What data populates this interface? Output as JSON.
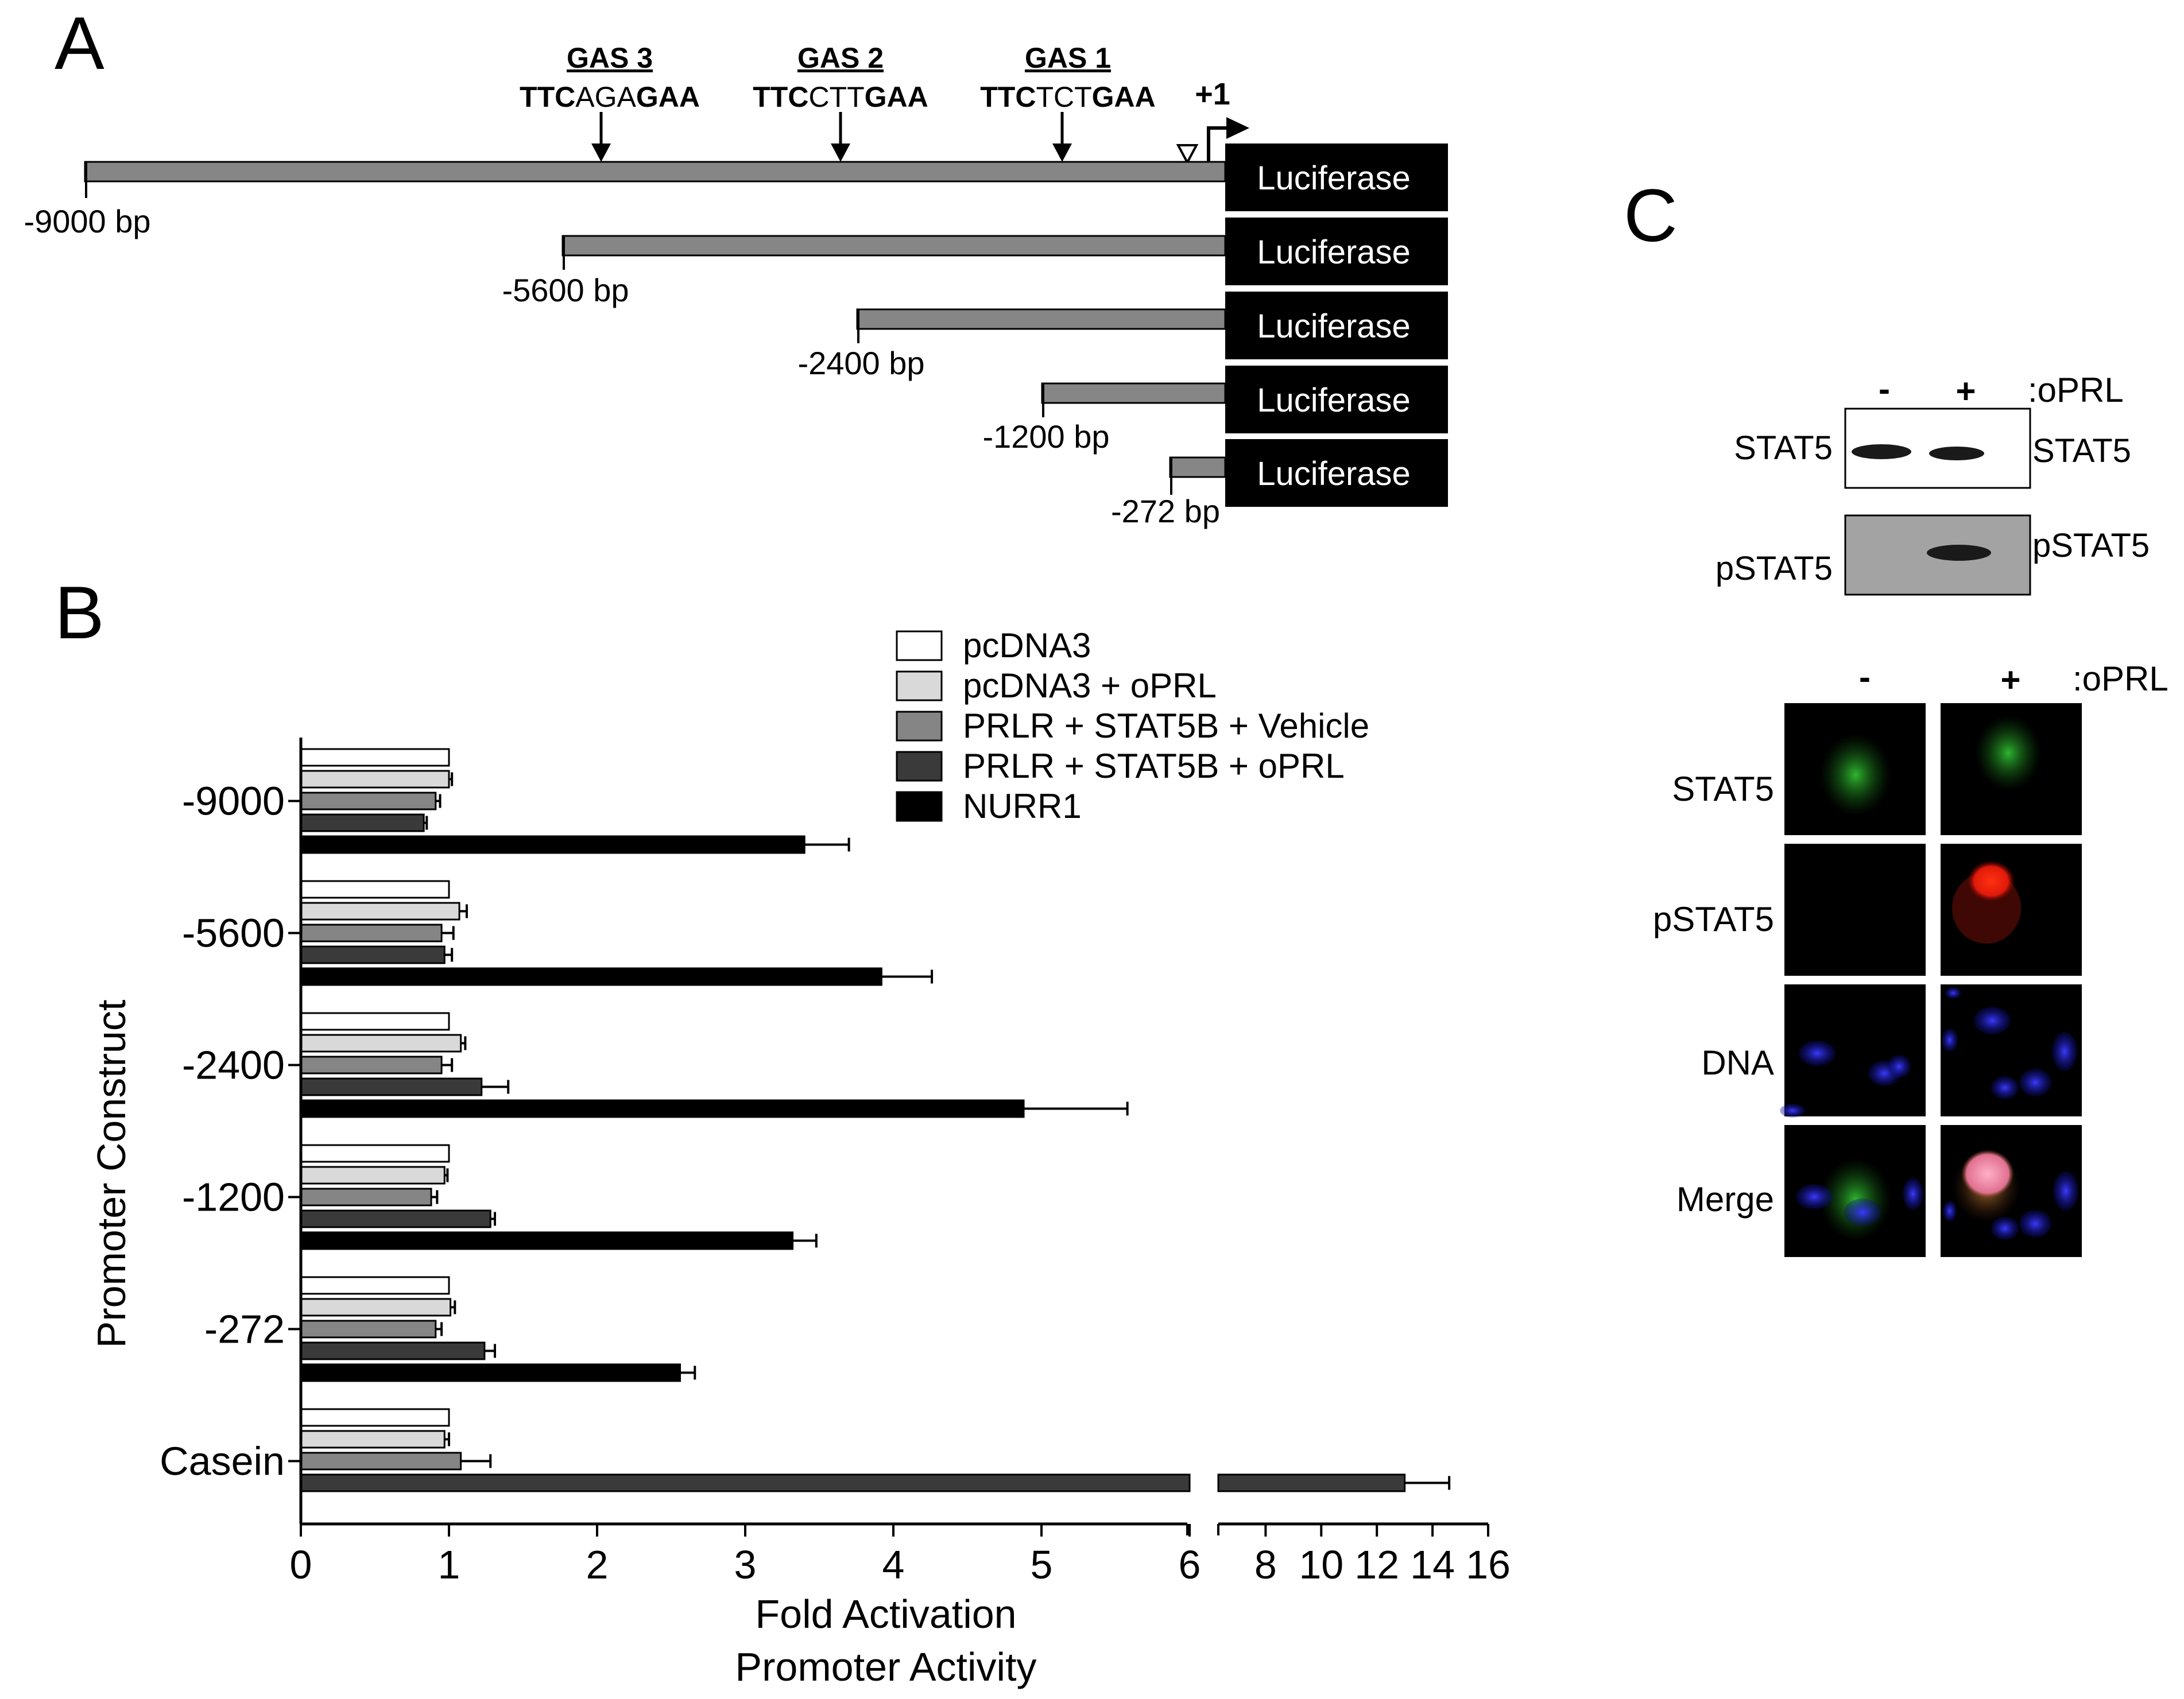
{
  "panels": {
    "a": "A",
    "b": "B",
    "c": "C"
  },
  "panel_a": {
    "gas_sites": [
      {
        "label": "GAS 3",
        "seq": [
          "TTC",
          "AGA",
          "GAA"
        ]
      },
      {
        "label": "GAS 2",
        "seq": [
          "TTC",
          "CTT",
          "GAA"
        ]
      },
      {
        "label": "GAS 1",
        "seq": [
          "TTC",
          "TCT",
          "GAA"
        ]
      }
    ],
    "tss_label": "+1",
    "reporter": "Luciferase",
    "constructs": [
      "-9000 bp",
      "-5600 bp",
      "-2400 bp",
      "-1200 bp",
      "-272 bp"
    ]
  },
  "chart_data": {
    "type": "bar",
    "orientation": "horizontal",
    "ylabel": "Promoter Construct",
    "xlabel": "Fold Activation",
    "xlabel2": "Promoter Activity",
    "categories": [
      "-9000",
      "-5600",
      "-2400",
      "-1200",
      "-272",
      "Casein"
    ],
    "x_break": {
      "low_range": [
        0,
        6
      ],
      "high_range": [
        6.3,
        16
      ]
    },
    "xticks_low": [
      "0",
      "1",
      "2",
      "3",
      "4",
      "5",
      "6"
    ],
    "xticks_high": [
      "8",
      "10",
      "12",
      "14",
      "16"
    ],
    "legend_position": "top-right",
    "series": [
      {
        "name": "pcDNA3",
        "color": "#ffffff",
        "values": [
          1.0,
          1.0,
          1.0,
          1.0,
          1.0,
          1.0
        ],
        "errors": [
          0,
          0,
          0,
          0,
          0,
          0
        ]
      },
      {
        "name": "pcDNA3 + oPRL",
        "color": "#d9d9d9",
        "values": [
          1.0,
          1.07,
          1.08,
          0.97,
          1.01,
          0.97
        ],
        "errors": [
          0.02,
          0.05,
          0.03,
          0.02,
          0.03,
          0.03
        ]
      },
      {
        "name": "PRLR + STAT5B + Vehicle",
        "color": "#858585",
        "values": [
          0.91,
          0.95,
          0.95,
          0.88,
          0.91,
          1.08
        ],
        "errors": [
          0.03,
          0.08,
          0.07,
          0.04,
          0.04,
          0.2
        ]
      },
      {
        "name": "PRLR + STAT5B + oPRL",
        "color": "#3a3a3a",
        "values": [
          0.83,
          0.97,
          1.22,
          1.28,
          1.24,
          13.0
        ],
        "errors": [
          0.02,
          0.05,
          0.18,
          0.03,
          0.07,
          1.6
        ]
      },
      {
        "name": "NURR1",
        "color": "#000000",
        "values": [
          3.4,
          3.92,
          4.88,
          3.32,
          2.56,
          null
        ],
        "errors": [
          0.3,
          0.34,
          0.7,
          0.16,
          0.1,
          0
        ]
      }
    ]
  },
  "panel_c": {
    "treatment_label": ":oPRL",
    "minus": "-",
    "plus": "+",
    "western": [
      {
        "left_label": "STAT5",
        "right_label": "STAT5"
      },
      {
        "left_label": "pSTAT5",
        "right_label": "pSTAT5"
      }
    ],
    "if_rows": [
      "STAT5",
      "pSTAT5",
      "DNA",
      "Merge"
    ]
  }
}
